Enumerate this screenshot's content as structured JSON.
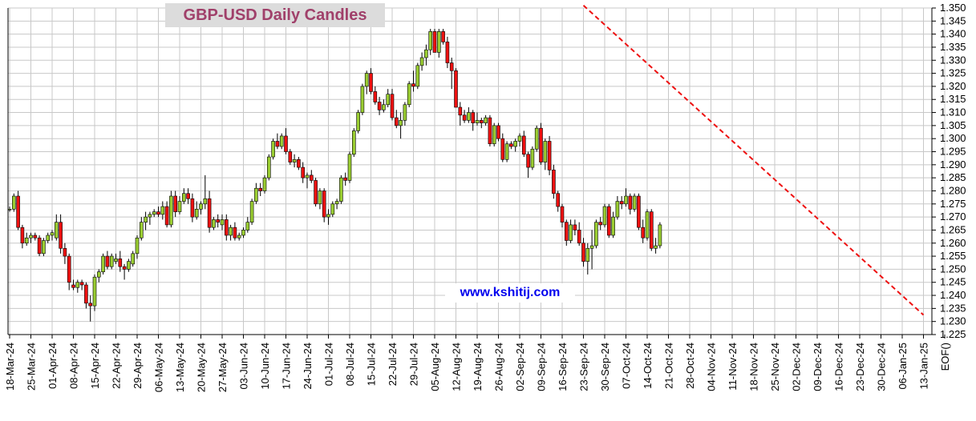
{
  "chart_data": {
    "type": "candlestick",
    "title": "GBP-USD Daily Candles",
    "watermark": "www.kshitij.com",
    "ylim": [
      1.225,
      1.35
    ],
    "y_ticks": [
      "1.225",
      "1.230",
      "1.235",
      "1.240",
      "1.245",
      "1.250",
      "1.255",
      "1.260",
      "1.265",
      "1.270",
      "1.275",
      "1.280",
      "1.285",
      "1.290",
      "1.295",
      "1.300",
      "1.305",
      "1.310",
      "1.315",
      "1.320",
      "1.325",
      "1.330",
      "1.335",
      "1.340",
      "1.345",
      "1.350"
    ],
    "x_ticks": [
      "18-Mar-24",
      "25-Mar-24",
      "01-Apr-24",
      "08-Apr-24",
      "15-Apr-24",
      "22-Apr-24",
      "29-Apr-24",
      "06-May-24",
      "13-May-24",
      "20-May-24",
      "27-May-24",
      "03-Jun-24",
      "10-Jun-24",
      "17-Jun-24",
      "24-Jun-24",
      "01-Jul-24",
      "08-Jul-24",
      "15-Jul-24",
      "22-Jul-24",
      "29-Jul-24",
      "05-Aug-24",
      "12-Aug-24",
      "19-Aug-24",
      "26-Aug-24",
      "02-Sep-24",
      "09-Sep-24",
      "16-Sep-24",
      "23-Sep-24",
      "30-Sep-24",
      "07-Oct-24",
      "14-Oct-24",
      "21-Oct-24",
      "28-Oct-24",
      "04-Nov-24",
      "11-Nov-24",
      "18-Nov-24",
      "25-Nov-24",
      "02-Dec-24",
      "09-Dec-24",
      "16-Dec-24",
      "23-Dec-24",
      "30-Dec-24",
      "06-Jan-25",
      "13-Jan-25",
      "EOF()"
    ],
    "grid": true,
    "colors": {
      "up": "#9acd32",
      "down": "#ee1111",
      "trendline": "#ee1111",
      "grid": "#c8c8c8",
      "title": "#a0406a",
      "watermark": "#0000ee"
    },
    "trendline": {
      "style": "dashed",
      "start": [
        "23-Sep-24",
        1.351
      ],
      "end": [
        "13-Jan-25",
        1.2325
      ]
    },
    "candles": [
      [
        1.273,
        1.274,
        1.272,
        1.273
      ],
      [
        1.273,
        1.279,
        1.272,
        1.278
      ],
      [
        1.278,
        1.28,
        1.265,
        1.266
      ],
      [
        1.266,
        1.267,
        1.258,
        1.26
      ],
      [
        1.26,
        1.264,
        1.259,
        1.262
      ],
      [
        1.262,
        1.264,
        1.26,
        1.263
      ],
      [
        1.263,
        1.264,
        1.261,
        1.262
      ],
      [
        1.262,
        1.263,
        1.255,
        1.256
      ],
      [
        1.256,
        1.262,
        1.255,
        1.261
      ],
      [
        1.261,
        1.264,
        1.26,
        1.263
      ],
      [
        1.263,
        1.265,
        1.261,
        1.264
      ],
      [
        1.262,
        1.271,
        1.261,
        1.268
      ],
      [
        1.268,
        1.271,
        1.256,
        1.258
      ],
      [
        1.258,
        1.26,
        1.252,
        1.255
      ],
      [
        1.255,
        1.256,
        1.242,
        1.245
      ],
      [
        1.244,
        1.246,
        1.242,
        1.243
      ],
      [
        1.243,
        1.246,
        1.241,
        1.245
      ],
      [
        1.245,
        1.246,
        1.242,
        1.244
      ],
      [
        1.244,
        1.245,
        1.235,
        1.237
      ],
      [
        1.237,
        1.24,
        1.23,
        1.236
      ],
      [
        1.236,
        1.248,
        1.234,
        1.247
      ],
      [
        1.247,
        1.25,
        1.245,
        1.249
      ],
      [
        1.249,
        1.256,
        1.248,
        1.255
      ],
      [
        1.255,
        1.257,
        1.25,
        1.251
      ],
      [
        1.251,
        1.256,
        1.25,
        1.255
      ],
      [
        1.253,
        1.256,
        1.252,
        1.254
      ],
      [
        1.254,
        1.257,
        1.249,
        1.251
      ],
      [
        1.251,
        1.252,
        1.246,
        1.25
      ],
      [
        1.25,
        1.254,
        1.249,
        1.253
      ],
      [
        1.252,
        1.257,
        1.251,
        1.256
      ],
      [
        1.256,
        1.263,
        1.254,
        1.262
      ],
      [
        1.262,
        1.27,
        1.261,
        1.268
      ],
      [
        1.268,
        1.272,
        1.265,
        1.27
      ],
      [
        1.27,
        1.272,
        1.267,
        1.271
      ],
      [
        1.271,
        1.273,
        1.27,
        1.272
      ],
      [
        1.272,
        1.274,
        1.27,
        1.271
      ],
      [
        1.271,
        1.276,
        1.269,
        1.274
      ],
      [
        1.274,
        1.276,
        1.266,
        1.267
      ],
      [
        1.267,
        1.28,
        1.266,
        1.278
      ],
      [
        1.278,
        1.28,
        1.27,
        1.272
      ],
      [
        1.272,
        1.278,
        1.271,
        1.276
      ],
      [
        1.276,
        1.281,
        1.275,
        1.279
      ],
      [
        1.279,
        1.281,
        1.275,
        1.277
      ],
      [
        1.277,
        1.279,
        1.268,
        1.27
      ],
      [
        1.27,
        1.276,
        1.269,
        1.273
      ],
      [
        1.273,
        1.276,
        1.271,
        1.275
      ],
      [
        1.275,
        1.286,
        1.273,
        1.277
      ],
      [
        1.277,
        1.28,
        1.264,
        1.266
      ],
      [
        1.266,
        1.27,
        1.265,
        1.269
      ],
      [
        1.269,
        1.271,
        1.266,
        1.268
      ],
      [
        1.267,
        1.271,
        1.265,
        1.269
      ],
      [
        1.269,
        1.271,
        1.261,
        1.263
      ],
      [
        1.263,
        1.267,
        1.261,
        1.266
      ],
      [
        1.266,
        1.268,
        1.261,
        1.262
      ],
      [
        1.262,
        1.264,
        1.261,
        1.263
      ],
      [
        1.263,
        1.266,
        1.262,
        1.265
      ],
      [
        1.265,
        1.27,
        1.264,
        1.268
      ],
      [
        1.268,
        1.277,
        1.267,
        1.276
      ],
      [
        1.276,
        1.283,
        1.275,
        1.281
      ],
      [
        1.281,
        1.283,
        1.278,
        1.28
      ],
      [
        1.28,
        1.286,
        1.279,
        1.285
      ],
      [
        1.285,
        1.294,
        1.284,
        1.293
      ],
      [
        1.293,
        1.3,
        1.292,
        1.299
      ],
      [
        1.299,
        1.302,
        1.296,
        1.297
      ],
      [
        1.297,
        1.302,
        1.296,
        1.301
      ],
      [
        1.301,
        1.304,
        1.294,
        1.295
      ],
      [
        1.295,
        1.296,
        1.29,
        1.291
      ],
      [
        1.291,
        1.294,
        1.289,
        1.292
      ],
      [
        1.292,
        1.293,
        1.288,
        1.289
      ],
      [
        1.289,
        1.291,
        1.283,
        1.285
      ],
      [
        1.285,
        1.287,
        1.281,
        1.286
      ],
      [
        1.286,
        1.288,
        1.283,
        1.284
      ],
      [
        1.284,
        1.285,
        1.274,
        1.275
      ],
      [
        1.275,
        1.281,
        1.273,
        1.28
      ],
      [
        1.28,
        1.281,
        1.268,
        1.27
      ],
      [
        1.27,
        1.273,
        1.267,
        1.271
      ],
      [
        1.271,
        1.276,
        1.27,
        1.275
      ],
      [
        1.275,
        1.277,
        1.273,
        1.276
      ],
      [
        1.276,
        1.286,
        1.275,
        1.285
      ],
      [
        1.285,
        1.287,
        1.282,
        1.284
      ],
      [
        1.284,
        1.295,
        1.283,
        1.294
      ],
      [
        1.294,
        1.304,
        1.293,
        1.303
      ],
      [
        1.303,
        1.311,
        1.302,
        1.31
      ],
      [
        1.31,
        1.321,
        1.309,
        1.32
      ],
      [
        1.32,
        1.326,
        1.317,
        1.325
      ],
      [
        1.325,
        1.327,
        1.317,
        1.318
      ],
      [
        1.318,
        1.32,
        1.313,
        1.314
      ],
      [
        1.314,
        1.316,
        1.309,
        1.311
      ],
      [
        1.311,
        1.315,
        1.31,
        1.313
      ],
      [
        1.313,
        1.319,
        1.312,
        1.317
      ],
      [
        1.317,
        1.319,
        1.307,
        1.308
      ],
      [
        1.308,
        1.311,
        1.304,
        1.305
      ],
      [
        1.305,
        1.31,
        1.3,
        1.307
      ],
      [
        1.307,
        1.314,
        1.305,
        1.313
      ],
      [
        1.313,
        1.322,
        1.312,
        1.321
      ],
      [
        1.321,
        1.326,
        1.318,
        1.32
      ],
      [
        1.32,
        1.329,
        1.319,
        1.328
      ],
      [
        1.328,
        1.333,
        1.326,
        1.331
      ],
      [
        1.331,
        1.336,
        1.328,
        1.334
      ],
      [
        1.334,
        1.342,
        1.332,
        1.341
      ],
      [
        1.341,
        1.342,
        1.333,
        1.333
      ],
      [
        1.333,
        1.342,
        1.331,
        1.341
      ],
      [
        1.341,
        1.342,
        1.336,
        1.337
      ],
      [
        1.337,
        1.339,
        1.327,
        1.329
      ],
      [
        1.329,
        1.331,
        1.319,
        1.326
      ],
      [
        1.326,
        1.327,
        1.312,
        1.312
      ],
      [
        1.312,
        1.314,
        1.305,
        1.309
      ],
      [
        1.309,
        1.311,
        1.306,
        1.307
      ],
      [
        1.307,
        1.312,
        1.306,
        1.31
      ],
      [
        1.31,
        1.311,
        1.303,
        1.306
      ],
      [
        1.306,
        1.31,
        1.305,
        1.307
      ],
      [
        1.307,
        1.308,
        1.304,
        1.306
      ],
      [
        1.306,
        1.309,
        1.305,
        1.308
      ],
      [
        1.308,
        1.309,
        1.297,
        1.298
      ],
      [
        1.298,
        1.306,
        1.297,
        1.305
      ],
      [
        1.305,
        1.306,
        1.299,
        1.3
      ],
      [
        1.3,
        1.302,
        1.291,
        1.292
      ],
      [
        1.292,
        1.299,
        1.291,
        1.298
      ],
      [
        1.298,
        1.299,
        1.296,
        1.297
      ],
      [
        1.297,
        1.3,
        1.295,
        1.299
      ],
      [
        1.299,
        1.302,
        1.297,
        1.301
      ],
      [
        1.301,
        1.303,
        1.293,
        1.294
      ],
      [
        1.294,
        1.295,
        1.285,
        1.289
      ],
      [
        1.289,
        1.297,
        1.288,
        1.296
      ],
      [
        1.296,
        1.305,
        1.295,
        1.304
      ],
      [
        1.304,
        1.306,
        1.29,
        1.291
      ],
      [
        1.291,
        1.3,
        1.288,
        1.299
      ],
      [
        1.299,
        1.301,
        1.286,
        1.288
      ],
      [
        1.288,
        1.29,
        1.277,
        1.279
      ],
      [
        1.279,
        1.28,
        1.272,
        1.274
      ],
      [
        1.274,
        1.275,
        1.266,
        1.268
      ],
      [
        1.268,
        1.269,
        1.259,
        1.261
      ],
      [
        1.261,
        1.269,
        1.26,
        1.267
      ],
      [
        1.267,
        1.269,
        1.263,
        1.265
      ],
      [
        1.265,
        1.268,
        1.259,
        1.26
      ],
      [
        1.26,
        1.262,
        1.251,
        1.253
      ],
      [
        1.253,
        1.26,
        1.248,
        1.258
      ],
      [
        1.258,
        1.265,
        1.25,
        1.259
      ],
      [
        1.259,
        1.269,
        1.258,
        1.268
      ],
      [
        1.268,
        1.27,
        1.265,
        1.267
      ],
      [
        1.267,
        1.275,
        1.266,
        1.274
      ],
      [
        1.274,
        1.275,
        1.262,
        1.263
      ],
      [
        1.263,
        1.272,
        1.262,
        1.27
      ],
      [
        1.27,
        1.278,
        1.269,
        1.276
      ],
      [
        1.276,
        1.278,
        1.273,
        1.275
      ],
      [
        1.275,
        1.281,
        1.274,
        1.278
      ],
      [
        1.278,
        1.279,
        1.271,
        1.273
      ],
      [
        1.273,
        1.279,
        1.272,
        1.278
      ],
      [
        1.278,
        1.279,
        1.265,
        1.266
      ],
      [
        1.266,
        1.269,
        1.26,
        1.262
      ],
      [
        1.262,
        1.273,
        1.261,
        1.272
      ],
      [
        1.272,
        1.273,
        1.257,
        1.258
      ],
      [
        1.258,
        1.262,
        1.256,
        1.259
      ],
      [
        1.259,
        1.268,
        1.258,
        1.267
      ]
    ]
  }
}
